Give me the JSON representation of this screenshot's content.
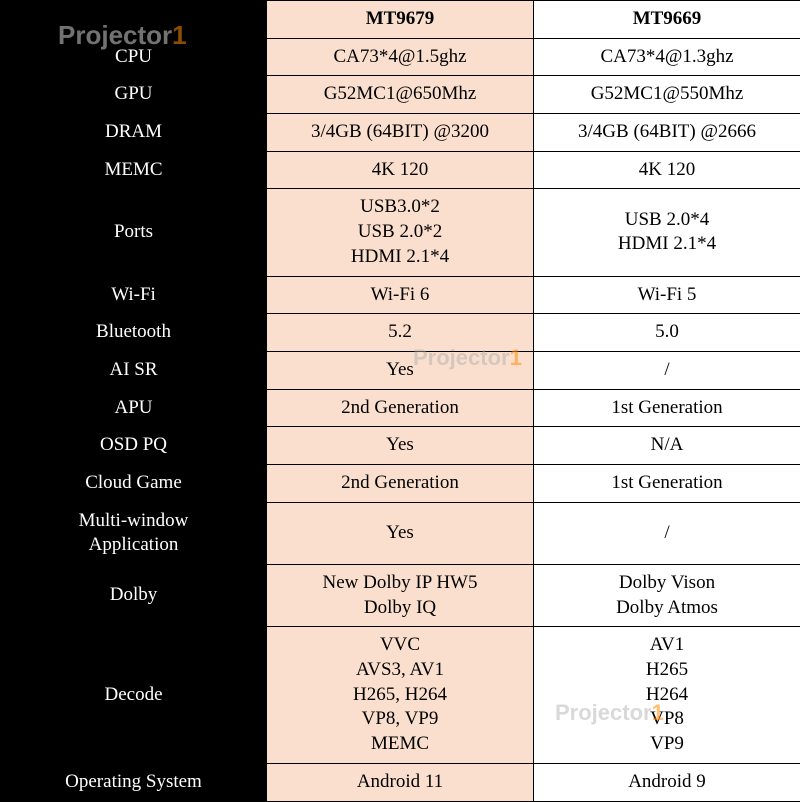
{
  "brand": {
    "name": "Projector",
    "accent": "1"
  },
  "colors": {
    "label_bg": "#000000",
    "label_text": "#ffffff",
    "col_a_bg": "#fadfce",
    "col_b_bg": "#ffffff",
    "border": "#000000",
    "watermark_gray": "rgba(170,170,170,0.45)",
    "watermark_accent": "rgba(255,140,0,0.55)"
  },
  "table": {
    "type": "table",
    "header": {
      "label": "",
      "col_a": "MT9679",
      "col_b": "MT9669"
    },
    "rows": [
      {
        "label": "CPU",
        "a": "CA73*4@1.5ghz",
        "b": "CA73*4@1.3ghz"
      },
      {
        "label": "GPU",
        "a": "G52MC1@650Mhz",
        "b": "G52MC1@550Mhz"
      },
      {
        "label": "DRAM",
        "a": "3/4GB (64BIT) @3200",
        "b": "3/4GB (64BIT) @2666"
      },
      {
        "label": "MEMC",
        "a": "4K 120",
        "b": "4K 120"
      },
      {
        "label": "Ports",
        "a_lines": [
          "USB3.0*2",
          "USB 2.0*2",
          "HDMI 2.1*4"
        ],
        "b_lines": [
          "USB 2.0*4",
          "HDMI 2.1*4"
        ]
      },
      {
        "label": "Wi-Fi",
        "a": "Wi-Fi 6",
        "b": "Wi-Fi 5"
      },
      {
        "label": "Bluetooth",
        "a": "5.2",
        "b": "5.0"
      },
      {
        "label": "AI SR",
        "a": "Yes",
        "b": "/"
      },
      {
        "label": "APU",
        "a": "2nd Generation",
        "b": "1st Generation"
      },
      {
        "label": "OSD PQ",
        "a": "Yes",
        "b": "N/A"
      },
      {
        "label": "Cloud Game",
        "a": "2nd Generation",
        "b": "1st Generation"
      },
      {
        "label_lines": [
          "Multi-window",
          "Application"
        ],
        "a": "Yes",
        "b": "/"
      },
      {
        "label": "Dolby",
        "a_lines": [
          "New Dolby IP HW5",
          "Dolby IQ"
        ],
        "b_lines": [
          "Dolby Vison",
          "Dolby Atmos"
        ]
      },
      {
        "label": "Decode",
        "a_lines": [
          "VVC",
          "AVS3, AV1",
          "H265, H264",
          "VP8, VP9",
          "MEMC"
        ],
        "b_lines": [
          "AV1",
          "H265",
          "H264",
          "VP8",
          "VP9"
        ]
      },
      {
        "label": "Operating System",
        "a": "Android 11",
        "b": "Android 9"
      }
    ]
  }
}
